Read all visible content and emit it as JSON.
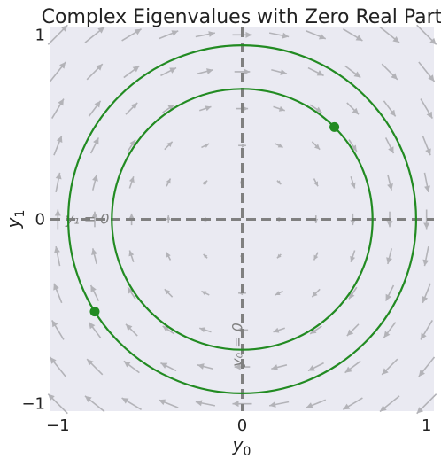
{
  "chart_data": {
    "type": "vector_field_phase_portrait",
    "title": "Complex Eigenvalues with Zero Real Part",
    "xlabel_base": "y",
    "xlabel_sub": "0",
    "ylabel_base": "y",
    "ylabel_sub": "1",
    "xlim": [
      -1.04,
      1.04
    ],
    "ylim": [
      -1.04,
      1.04
    ],
    "xticks": [
      {
        "value": -1,
        "label": "−1"
      },
      {
        "value": 0,
        "label": "0"
      },
      {
        "value": 1,
        "label": "1"
      }
    ],
    "yticks": [
      {
        "value": -1,
        "label": "−1"
      },
      {
        "value": 0,
        "label": "0"
      },
      {
        "value": 1,
        "label": "1"
      }
    ],
    "grid": false,
    "background_color": "#eaeaf2",
    "trajectory_color": "#228b22",
    "field_color": "#b3b3b8",
    "nullcline_color": "#808080",
    "field": {
      "description": "dy0/dt = y1, dy1/dt = -y0 (circular rotation, counter-clockwise)",
      "grid_min": -1.0,
      "grid_max": 1.0,
      "grid_count": 11
    },
    "nullclines": [
      {
        "label": "y₀ = 0",
        "orientation": "vertical",
        "value": 0
      },
      {
        "label": "y₁ = 0",
        "orientation": "horizontal",
        "value": 0
      }
    ],
    "trajectories": [
      {
        "start": [
          0.5,
          0.5
        ],
        "radius": 0.7071
      },
      {
        "start": [
          -0.8,
          -0.5
        ],
        "radius": 0.9434
      }
    ]
  }
}
